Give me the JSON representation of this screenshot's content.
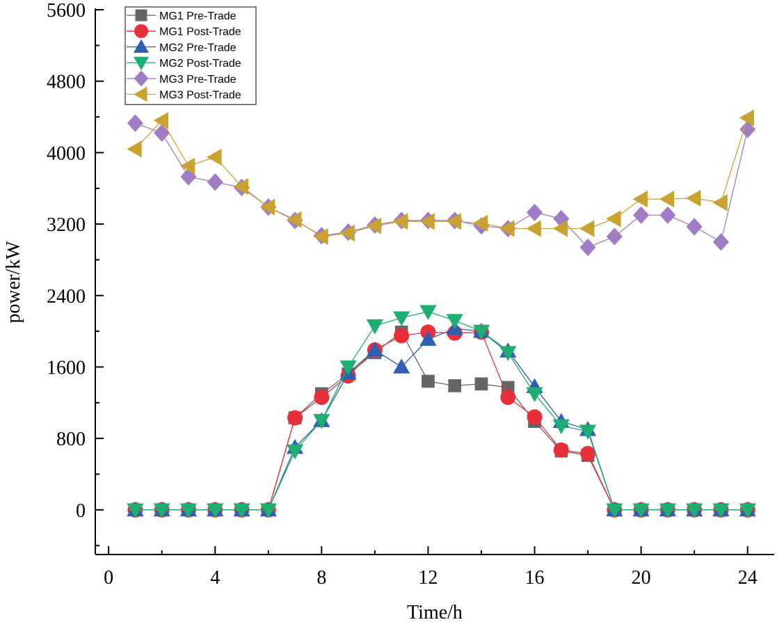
{
  "chart_data": {
    "type": "line",
    "title": "",
    "xlabel": "Time/h",
    "ylabel": "power/kW",
    "xlim": [
      -0.5,
      25
    ],
    "ylim": [
      -500,
      5600
    ],
    "xticks": [
      0,
      4,
      8,
      12,
      16,
      20,
      24
    ],
    "yticks": [
      0,
      800,
      1600,
      2400,
      3200,
      4000,
      4800,
      5600
    ],
    "xtick_labels": [
      "0",
      "4",
      "8",
      "12",
      "16",
      "20",
      "24"
    ],
    "ytick_labels": [
      "0",
      "800",
      "1600",
      "2400",
      "3200",
      "4000",
      "4800",
      "5600"
    ],
    "legend_position": "top-left",
    "x": [
      1,
      2,
      3,
      4,
      5,
      6,
      7,
      8,
      9,
      10,
      11,
      12,
      13,
      14,
      15,
      16,
      17,
      18,
      19,
      20,
      21,
      22,
      23,
      24
    ],
    "series": [
      {
        "name": "MG1 Pre-Trade",
        "marker": "square",
        "color": "#666666",
        "values": [
          0,
          0,
          0,
          0,
          0,
          0,
          1030,
          1300,
          1520,
          1760,
          1990,
          1440,
          1390,
          1410,
          1370,
          990,
          660,
          610,
          0,
          0,
          0,
          0,
          0,
          0
        ]
      },
      {
        "name": "MG1 Post-Trade",
        "marker": "circle",
        "color": "#e8303a",
        "values": [
          0,
          0,
          0,
          0,
          0,
          0,
          1030,
          1260,
          1500,
          1790,
          1950,
          1990,
          1980,
          1990,
          1260,
          1040,
          670,
          630,
          0,
          0,
          0,
          0,
          0,
          0
        ]
      },
      {
        "name": "MG2 Pre-Trade",
        "marker": "triangle-up",
        "color": "#2e5fb0",
        "values": [
          0,
          0,
          0,
          0,
          0,
          0,
          700,
          1000,
          1530,
          1790,
          1600,
          1910,
          2030,
          2000,
          1780,
          1380,
          990,
          900,
          0,
          0,
          0,
          0,
          0,
          0
        ]
      },
      {
        "name": "MG2 Post-Trade",
        "marker": "triangle-down",
        "color": "#1fae72",
        "values": [
          0,
          0,
          0,
          0,
          0,
          0,
          660,
          1000,
          1600,
          2060,
          2150,
          2220,
          2120,
          2000,
          1760,
          1300,
          940,
          880,
          0,
          0,
          0,
          0,
          0,
          0
        ]
      },
      {
        "name": "MG3 Pre-Trade",
        "marker": "diamond",
        "color": "#a07cc5",
        "values": [
          4330,
          4220,
          3730,
          3670,
          3610,
          3390,
          3240,
          3070,
          3110,
          3190,
          3240,
          3240,
          3240,
          3180,
          3150,
          3330,
          3260,
          2940,
          3060,
          3300,
          3300,
          3170,
          3000,
          4260
        ]
      },
      {
        "name": "MG3 Post-Trade",
        "marker": "triangle-left",
        "color": "#c9a231",
        "values": [
          4040,
          4360,
          3850,
          3950,
          3620,
          3390,
          3250,
          3060,
          3100,
          3180,
          3230,
          3230,
          3230,
          3210,
          3150,
          3150,
          3150,
          3150,
          3260,
          3480,
          3480,
          3490,
          3440,
          4390
        ]
      }
    ]
  }
}
